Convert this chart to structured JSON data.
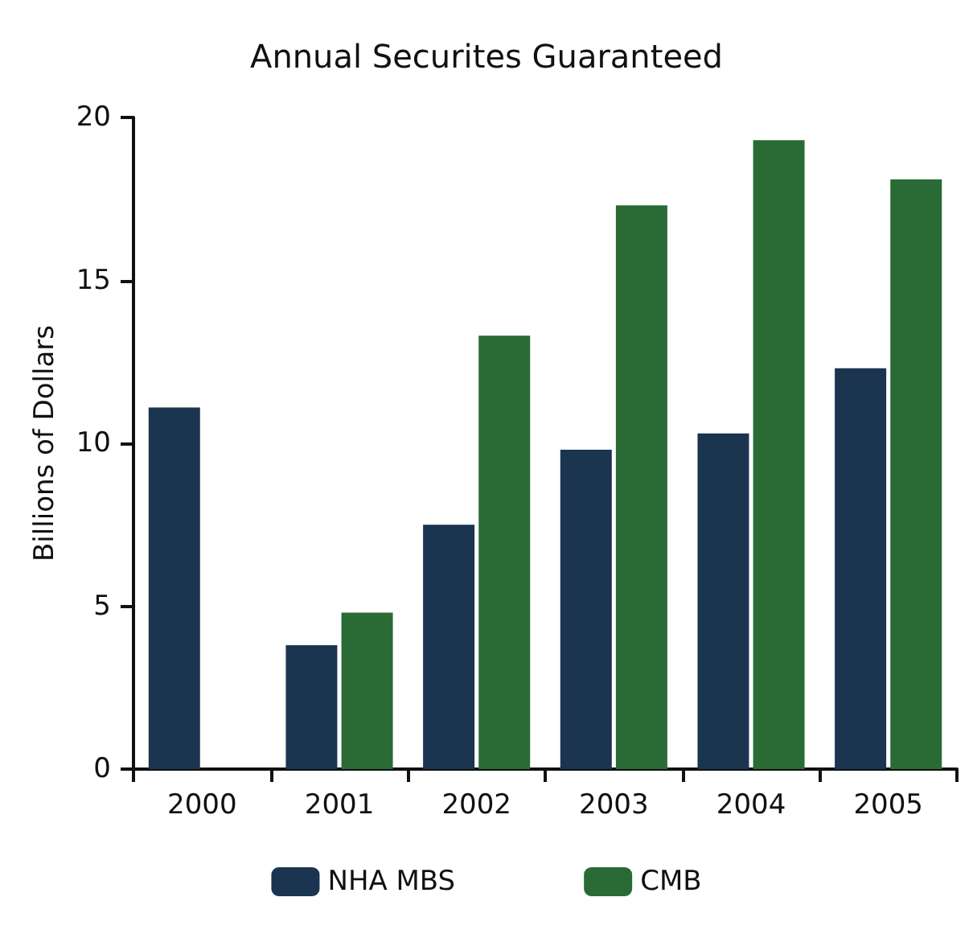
{
  "chart_data": {
    "type": "bar",
    "title": "Annual Securites Guaranteed",
    "ylabel": "Billions of Dollars",
    "categories": [
      "2000",
      "2001",
      "2002",
      "2003",
      "2004",
      "2005"
    ],
    "series": [
      {
        "name": "NHA MBS",
        "color": "#1b3550",
        "values": [
          11.1,
          3.8,
          7.5,
          9.8,
          10.3,
          12.3
        ]
      },
      {
        "name": "CMB",
        "color": "#2a6b35",
        "values": [
          null,
          4.8,
          13.3,
          17.3,
          19.3,
          18.1
        ]
      }
    ],
    "ylim": [
      0,
      20
    ],
    "yticks": [
      0,
      5,
      10,
      15,
      20
    ],
    "grid": false,
    "legend": "bottom"
  }
}
